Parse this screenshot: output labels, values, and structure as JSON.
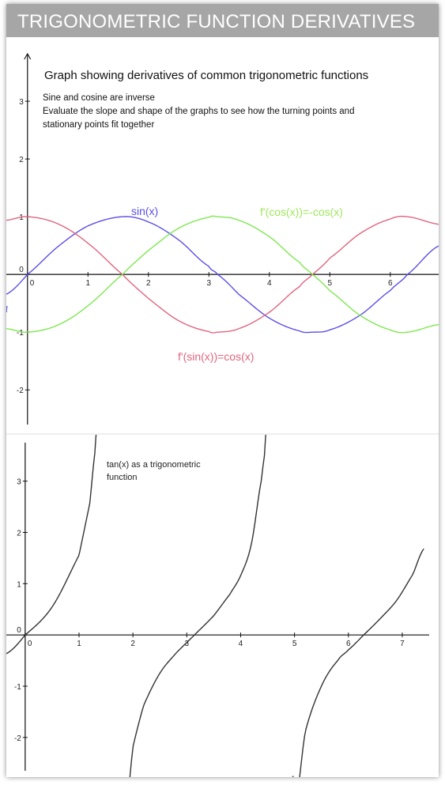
{
  "header": {
    "title": "TRIGONOMETRIC FUNCTION DERIVATIVES"
  },
  "chart_data": [
    {
      "type": "line",
      "title": "Graph showing derivatives of common trigonometric functions",
      "notes": [
        "Sine and cosine are inverse",
        "Evaluate the slope and shape of the graphs to see how the turning points and",
        "stationary points fit together"
      ],
      "xlim": [
        -0.35,
        6.8
      ],
      "ylim": [
        -2.6,
        3.7
      ],
      "x_ticks": [
        0,
        1,
        2,
        3,
        4,
        5,
        6
      ],
      "y_ticks": [
        -2,
        -1,
        0,
        1,
        2,
        3
      ],
      "y_tick_labels": [
        "-2",
        "-1",
        "0",
        "1",
        "2",
        "3"
      ],
      "axis_stub_label": "f",
      "grid": false,
      "series": [
        {
          "name": "sin(x)",
          "color": "#5c4ee6",
          "x": [
            -0.35,
            0,
            0.5,
            1,
            1.571,
            2,
            2.5,
            3,
            3.142,
            3.5,
            4,
            4.5,
            4.712,
            5,
            5.5,
            6,
            6.283,
            6.8
          ],
          "y": [
            -0.343,
            0,
            0.479,
            0.841,
            1,
            0.909,
            0.598,
            0.141,
            0,
            -0.351,
            -0.757,
            -0.978,
            -1,
            -0.959,
            -0.706,
            -0.279,
            0,
            0.494
          ]
        },
        {
          "name": "f'(sin(x))=cos(x)",
          "color": "#e0657e",
          "x": [
            -0.35,
            0,
            0.5,
            1,
            1.571,
            2,
            2.5,
            3,
            3.142,
            3.5,
            4,
            4.5,
            4.712,
            5,
            5.5,
            6,
            6.283,
            6.8
          ],
          "y": [
            0.939,
            1,
            0.878,
            0.54,
            0,
            -0.416,
            -0.801,
            -0.99,
            -1,
            -0.936,
            -0.654,
            -0.211,
            0,
            0.284,
            0.709,
            0.96,
            1,
            0.869
          ]
        },
        {
          "name": "f'(cos(x))=-cos(x)",
          "color": "#7de84f",
          "x": [
            -0.35,
            0,
            0.5,
            1,
            1.571,
            2,
            2.5,
            3,
            3.142,
            3.5,
            4,
            4.5,
            4.712,
            5,
            5.5,
            6,
            6.283,
            6.8
          ],
          "y": [
            -0.939,
            -1,
            -0.878,
            -0.54,
            0,
            0.416,
            0.801,
            0.99,
            1,
            0.936,
            0.654,
            0.211,
            0,
            -0.284,
            -0.709,
            -0.96,
            -1,
            -0.869
          ]
        }
      ]
    },
    {
      "type": "line",
      "title": "tan(x) as a trigonometric function",
      "xlim": [
        -0.35,
        7.5
      ],
      "ylim": [
        -2.65,
        3.75
      ],
      "x_ticks": [
        0,
        1,
        2,
        3,
        4,
        5,
        6,
        7
      ],
      "y_ticks": [
        -2,
        -1,
        0,
        1,
        2,
        3
      ],
      "y_tick_labels": [
        "-2",
        "-1",
        "0",
        "1",
        "2",
        "3"
      ],
      "grid": false,
      "series": [
        {
          "name": "tan(x)",
          "color": "#333333",
          "x": [
            -0.35,
            0,
            0.5,
            1,
            1.2,
            1.3,
            1.33,
            1.86,
            1.9,
            2,
            2.2,
            2.5,
            2.8,
            3.142,
            3.5,
            3.8,
            4,
            4.2,
            4.4,
            4.45,
            4.47,
            4.97,
            5.0,
            5.2,
            5.5,
            5.8,
            6.0,
            6.283,
            6.6,
            6.9,
            7.2,
            7.4
          ],
          "y": [
            -0.365,
            0,
            0.546,
            1.557,
            2.572,
            3.602,
            4.07,
            -3.49,
            -3.17,
            -2.185,
            -1.374,
            -0.747,
            -0.356,
            0,
            0.375,
            0.792,
            1.158,
            1.778,
            3.096,
            3.566,
            3.99,
            -2.75,
            -3.381,
            -1.886,
            -0.996,
            -0.503,
            -0.291,
            0,
            0.327,
            0.68,
            1.189,
            1.68
          ]
        }
      ]
    }
  ]
}
